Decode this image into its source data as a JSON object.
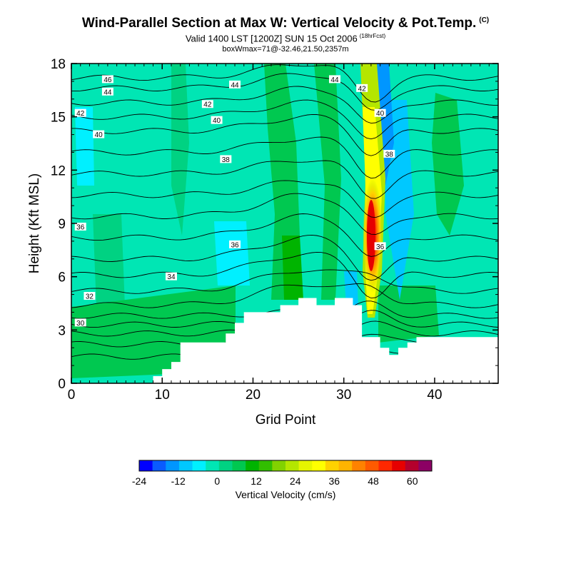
{
  "chart_data": {
    "type": "heatmap",
    "title": "Wind-Parallel Section at Max W: Vertical Velocity & Pot.Temp.",
    "title_mark": "(C)",
    "subtitle": "Valid 1400 LST [1200Z] SUN 15 Oct 2006",
    "subtitle_note": "(18hrFcst)",
    "info_line": "boxWmax=71@-32.46,21.50,2357m",
    "xlabel": "Grid Point",
    "ylabel": "Height (Kft MSL)",
    "xlim": [
      0,
      47
    ],
    "ylim": [
      0,
      18
    ],
    "x_ticks": [
      0,
      10,
      20,
      30,
      40
    ],
    "y_ticks": [
      0,
      3,
      6,
      9,
      12,
      15,
      18
    ],
    "colorbar": {
      "label": "Vertical Velocity (cm/s)",
      "tick_labels": [
        -24,
        -12,
        0,
        12,
        24,
        36,
        48,
        60
      ],
      "range": [
        -24,
        66
      ],
      "step": 4.5,
      "colors": [
        "#0000ff",
        "#0a5bff",
        "#0096ff",
        "#00c8ff",
        "#00f0ff",
        "#00e6b4",
        "#00d282",
        "#00c850",
        "#00b400",
        "#32be00",
        "#82d200",
        "#b4e600",
        "#e6f500",
        "#ffff00",
        "#ffd200",
        "#ffb400",
        "#ff8200",
        "#ff5a00",
        "#ff2800",
        "#e60000",
        "#b4002d",
        "#8c0064"
      ]
    },
    "w_max_core": {
      "x": 33,
      "height_kft": 8.5,
      "value_cms": 60
    },
    "theta_contours": [
      {
        "label": "46",
        "x": 4,
        "y": 17.1
      },
      {
        "label": "44",
        "x": 4,
        "y": 16.4
      },
      {
        "label": "44",
        "x": 29,
        "y": 17.1
      },
      {
        "label": "44",
        "x": 18,
        "y": 16.8
      },
      {
        "label": "42",
        "x": 1,
        "y": 15.2
      },
      {
        "label": "42",
        "x": 15,
        "y": 15.7
      },
      {
        "label": "42",
        "x": 32,
        "y": 16.6
      },
      {
        "label": "40",
        "x": 3,
        "y": 14.0
      },
      {
        "label": "40",
        "x": 16,
        "y": 14.8
      },
      {
        "label": "40",
        "x": 34,
        "y": 15.2
      },
      {
        "label": "38",
        "x": 17,
        "y": 12.6
      },
      {
        "label": "38",
        "x": 35,
        "y": 12.9
      },
      {
        "label": "36",
        "x": 1,
        "y": 8.8
      },
      {
        "label": "36",
        "x": 18,
        "y": 7.8
      },
      {
        "label": "36",
        "x": 34,
        "y": 7.7
      },
      {
        "label": "34",
        "x": 11,
        "y": 6.0
      },
      {
        "label": "32",
        "x": 2,
        "y": 4.9
      },
      {
        "label": "30",
        "x": 1,
        "y": 3.4
      }
    ]
  }
}
